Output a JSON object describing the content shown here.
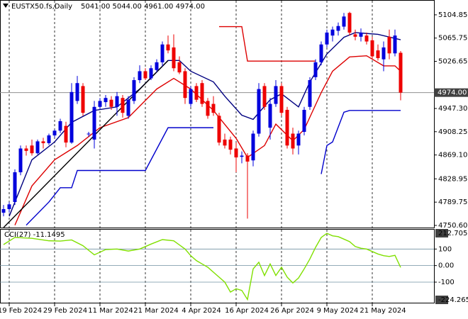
{
  "chart_data": [
    {
      "type": "candlestick",
      "title": "EUSTX50.fs,Daily",
      "subtitle": "5041.00 5044.00 4961.00 4974.00",
      "categories": [
        null,
        "19 Feb 2024",
        null,
        null,
        null,
        null,
        null,
        null,
        null,
        "29 Feb 2024",
        null,
        null,
        null,
        null,
        null,
        null,
        null,
        "11 Mar 2024",
        null,
        null,
        null,
        null,
        null,
        null,
        null,
        "21 Mar 2024",
        null,
        null,
        null,
        null,
        null,
        null,
        null,
        "4 Apr 2024",
        null,
        null,
        null,
        null,
        null,
        null,
        null,
        "16 Apr 2024",
        null,
        null,
        null,
        null,
        null,
        null,
        null,
        "26 Apr 2024",
        null,
        null,
        null,
        null,
        null,
        null,
        null,
        "9 May 2024",
        null,
        null,
        null,
        null,
        null,
        null,
        null,
        "21 May 2024",
        null,
        null,
        null,
        null,
        null
      ],
      "open": [
        4772,
        4778,
        4790,
        4840,
        4880,
        4885,
        4872,
        4892,
        4889,
        4902,
        4910,
        4918,
        4890,
        4960,
        4985,
        4904,
        4895,
        4950,
        4958,
        4962,
        4950,
        4965,
        4935,
        4960,
        4995,
        5010,
        4998,
        5012,
        5025,
        5055,
        5050,
        5025,
        5010,
        4955,
        4985,
        4990,
        4960,
        4955,
        4935,
        4895,
        4895,
        4880,
        4866,
        4868,
        4860,
        4905,
        4985,
        4915,
        4955,
        4985,
        4945,
        4905,
        4885,
        4908,
        4950,
        5000,
        5025,
        5055,
        5070,
        5078,
        5085,
        5108,
        5072,
        5068,
        5070,
        5062,
        5045,
        5030,
        5068,
        5040,
        5041
      ],
      "high": [
        4785,
        4790,
        4845,
        4885,
        4885,
        4895,
        4895,
        4898,
        4905,
        4912,
        4930,
        4925,
        4990,
        5002,
        4990,
        4908,
        4960,
        4965,
        4970,
        4968,
        4975,
        4970,
        4968,
        5000,
        5020,
        5015,
        5020,
        5030,
        5060,
        5070,
        5072,
        5035,
        5015,
        4985,
        4990,
        4995,
        4965,
        4968,
        4940,
        4905,
        4900,
        4890,
        4875,
        4872,
        4910,
        4990,
        4990,
        4965,
        4995,
        4990,
        4950,
        4915,
        4910,
        4950,
        5000,
        5030,
        5060,
        5080,
        5085,
        5092,
        5108,
        5110,
        5080,
        5082,
        5075,
        5068,
        5055,
        5060,
        5080,
        5080,
        5044
      ],
      "low": [
        4766,
        4772,
        4785,
        4835,
        4868,
        4868,
        4870,
        4880,
        4886,
        4898,
        4906,
        4882,
        4888,
        4955,
        4935,
        4900,
        4880,
        4945,
        4950,
        4945,
        4935,
        4932,
        4930,
        4955,
        4990,
        4995,
        4995,
        5008,
        5018,
        5040,
        5010,
        5005,
        4955,
        4950,
        4958,
        4950,
        4930,
        4935,
        4885,
        4880,
        4870,
        4840,
        4855,
        4762,
        4850,
        4900,
        4945,
        4895,
        4950,
        4935,
        4880,
        4870,
        4870,
        4902,
        4945,
        4995,
        5020,
        5050,
        5060,
        5070,
        5080,
        5070,
        5062,
        5060,
        5055,
        5030,
        5028,
        5010,
        5030,
        5035,
        4961
      ],
      "close": [
        4778,
        4786,
        4840,
        4880,
        4876,
        4872,
        4892,
        4889,
        4902,
        4910,
        4926,
        4890,
        4975,
        4990,
        4940,
        4905,
        4950,
        4960,
        4965,
        4950,
        4968,
        4940,
        4962,
        4995,
        5010,
        4998,
        5015,
        5025,
        5055,
        5045,
        5015,
        5008,
        4965,
        4980,
        4962,
        4955,
        4935,
        4940,
        4890,
        4885,
        4878,
        4865,
        4868,
        4858,
        4905,
        4980,
        4950,
        4955,
        4985,
        4940,
        4885,
        4880,
        4905,
        4945,
        4995,
        5025,
        5055,
        5075,
        5080,
        5086,
        5102,
        5075,
        5068,
        5075,
        5060,
        5035,
        5032,
        5050,
        5040,
        5070,
        4974
      ],
      "up_color": "#0000dd",
      "down_color": "#ee0000",
      "lines": [
        {
          "color": "#000080",
          "x": [
            1,
            5,
            9,
            12,
            16,
            20,
            24,
            29,
            31,
            33,
            37,
            39,
            42,
            44,
            47,
            49,
            52,
            54,
            57,
            60,
            62,
            66,
            70
          ],
          "values": [
            4766,
            4861,
            4891,
            4924,
            4944,
            4950,
            4980,
            5028,
            5028,
            5010,
            4992,
            4968,
            4936,
            4929,
            4962,
            4972,
            4950,
            4992,
            5039,
            5067,
            5075,
            5072,
            5063
          ]
        },
        {
          "color": "#dd0000",
          "x": [
            2,
            5,
            9,
            13,
            17,
            22,
            27,
            30,
            33,
            37,
            41,
            43,
            46,
            48,
            51,
            53,
            56,
            58,
            61,
            64,
            67,
            69,
            70
          ],
          "values": [
            4751,
            4817,
            4861,
            4885,
            4915,
            4932,
            4980,
            4998,
            4980,
            4944,
            4897,
            4865,
            4885,
            4921,
            4893,
            4912,
            4974,
            5010,
            5034,
            5036,
            5019,
            5019,
            5010
          ]
        },
        {
          "color": "#0000cc",
          "x": [
            4,
            8,
            10,
            12,
            13,
            25,
            29,
            37,
            45,
            56,
            57,
            58,
            60,
            61,
            70
          ],
          "values": [
            4751,
            4790,
            4814,
            4814,
            4843,
            4843,
            4915,
            4915,
            null,
            4837,
            4885,
            4891,
            4941,
            4944,
            4944
          ]
        },
        {
          "color": "#dd0000",
          "x": [
            38,
            42,
            43,
            55
          ],
          "values": [
            5085,
            5085,
            5027,
            5027
          ]
        },
        {
          "color": "#000000",
          "x": [
            0,
            29
          ],
          "values": [
            4747,
            5028
          ]
        }
      ],
      "ylim": [
        4747,
        5128.6
      ],
      "yticks": [
        5104.85,
        5065.75,
        5026.65,
        {
          "value": 4947.3,
          "label": "4947.30"
        },
        4908.25,
        {
          "value": 4869.1,
          "label": "4869.10"
        },
        4828.95,
        4789.75,
        {
          "value": 4750.6,
          "label": "4750.60"
        }
      ],
      "price_line": {
        "value": 4974,
        "label": "4974.00"
      },
      "grid": true
    },
    {
      "type": "line",
      "title": "CCI(27) -11.1495",
      "series": [
        {
          "color": "#80e000",
          "x": [
            0,
            2,
            5,
            8,
            10,
            12,
            14,
            16,
            18,
            20,
            22,
            24,
            26,
            28,
            30,
            32,
            33,
            34,
            35,
            36,
            37,
            38,
            39,
            40,
            41,
            42,
            43,
            44,
            45,
            46,
            47,
            48,
            49,
            50,
            51,
            52,
            53,
            54,
            55,
            56,
            57,
            58,
            59,
            60,
            61,
            62,
            63,
            64,
            65,
            66,
            67,
            68,
            69,
            70
          ],
          "values": [
            127,
            170,
            165,
            150,
            148,
            155,
            120,
            65,
            97,
            100,
            88,
            100,
            130,
            157,
            150,
            100,
            60,
            30,
            10,
            -10,
            -40,
            -70,
            -100,
            -160,
            -140,
            -150,
            -205,
            -20,
            20,
            -60,
            10,
            -60,
            -10,
            -70,
            -105,
            -75,
            -20,
            40,
            110,
            170,
            195,
            180,
            175,
            160,
            145,
            115,
            105,
            100,
            85,
            70,
            60,
            55,
            62,
            -11.1495
          ]
        }
      ],
      "ylim": [
        -224.2659,
        212.7055
      ],
      "yticks": [
        100,
        {
          "value": 0,
          "label": "0.00"
        },
        -100
      ]
    }
  ]
}
